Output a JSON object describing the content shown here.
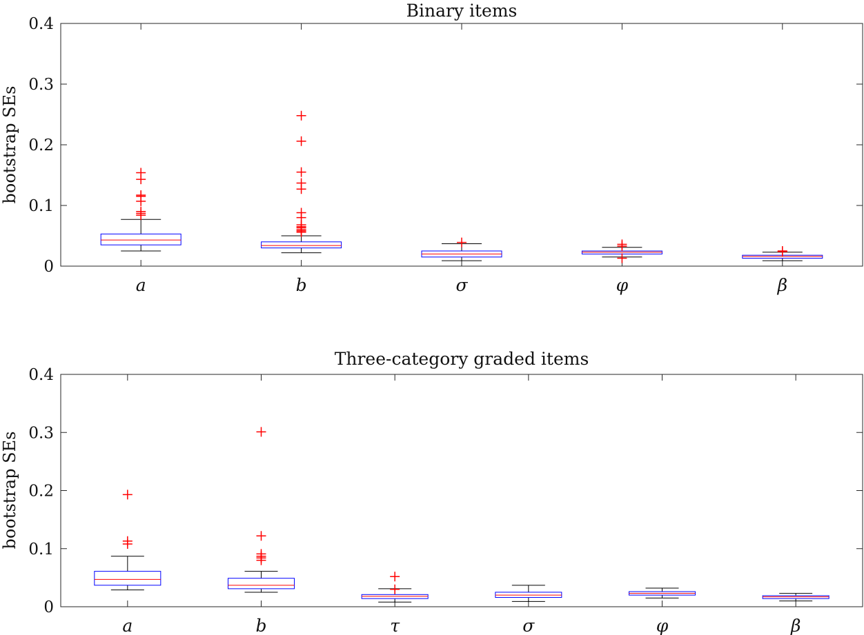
{
  "colors": {
    "box": "#0000ff",
    "median": "#ff0000",
    "outlier": "#ff0000",
    "whisker": "#000000",
    "axis": "#262626"
  },
  "chart_data": [
    {
      "type": "boxplot",
      "title": "Binary items",
      "ylabel": "bootstrap SEs",
      "xlabel": "",
      "ylim": [
        0,
        0.4
      ],
      "yticks": [
        0,
        0.1,
        0.2,
        0.3,
        0.4
      ],
      "ytick_labels": [
        "0",
        "0.1",
        "0.2",
        "0.3",
        "0.4"
      ],
      "categories": [
        "a",
        "b",
        "σ",
        "φ",
        "β"
      ],
      "boxes": [
        {
          "q1": 0.035,
          "median": 0.043,
          "q3": 0.053,
          "whisker_low": 0.025,
          "whisker_high": 0.077,
          "outliers": [
            0.084,
            0.087,
            0.09,
            0.107,
            0.115,
            0.117,
            0.143,
            0.154
          ]
        },
        {
          "q1": 0.03,
          "median": 0.034,
          "q3": 0.04,
          "whisker_low": 0.022,
          "whisker_high": 0.05,
          "outliers": [
            0.056,
            0.058,
            0.06,
            0.063,
            0.065,
            0.068,
            0.08,
            0.088,
            0.127,
            0.137,
            0.155,
            0.206,
            0.248
          ]
        },
        {
          "q1": 0.015,
          "median": 0.02,
          "q3": 0.025,
          "whisker_low": 0.009,
          "whisker_high": 0.037,
          "outliers": [
            0.039
          ]
        },
        {
          "q1": 0.02,
          "median": 0.023,
          "q3": 0.025,
          "whisker_low": 0.015,
          "whisker_high": 0.031,
          "outliers": [
            0.013,
            0.033,
            0.036
          ]
        },
        {
          "q1": 0.013,
          "median": 0.016,
          "q3": 0.018,
          "whisker_low": 0.009,
          "whisker_high": 0.023,
          "outliers": [
            0.024,
            0.025
          ]
        }
      ]
    },
    {
      "type": "boxplot",
      "title": "Three-category graded items",
      "ylabel": "bootstrap SEs",
      "xlabel": "",
      "ylim": [
        0,
        0.4
      ],
      "yticks": [
        0,
        0.1,
        0.2,
        0.3,
        0.4
      ],
      "ytick_labels": [
        "0",
        "0.1",
        "0.2",
        "0.3",
        "0.4"
      ],
      "categories": [
        "a",
        "b",
        "τ",
        "σ",
        "φ",
        "β"
      ],
      "boxes": [
        {
          "q1": 0.037,
          "median": 0.047,
          "q3": 0.061,
          "whisker_low": 0.029,
          "whisker_high": 0.087,
          "outliers": [
            0.108,
            0.113,
            0.193
          ]
        },
        {
          "q1": 0.031,
          "median": 0.037,
          "q3": 0.049,
          "whisker_low": 0.025,
          "whisker_high": 0.061,
          "outliers": [
            0.08,
            0.084,
            0.087,
            0.091,
            0.122,
            0.301
          ]
        },
        {
          "q1": 0.014,
          "median": 0.018,
          "q3": 0.021,
          "whisker_low": 0.008,
          "whisker_high": 0.031,
          "outliers": [
            0.03,
            0.052
          ]
        },
        {
          "q1": 0.016,
          "median": 0.02,
          "q3": 0.025,
          "whisker_low": 0.009,
          "whisker_high": 0.037,
          "outliers": []
        },
        {
          "q1": 0.02,
          "median": 0.023,
          "q3": 0.026,
          "whisker_low": 0.015,
          "whisker_high": 0.032,
          "outliers": []
        },
        {
          "q1": 0.014,
          "median": 0.017,
          "q3": 0.019,
          "whisker_low": 0.01,
          "whisker_high": 0.023,
          "outliers": []
        }
      ]
    }
  ]
}
